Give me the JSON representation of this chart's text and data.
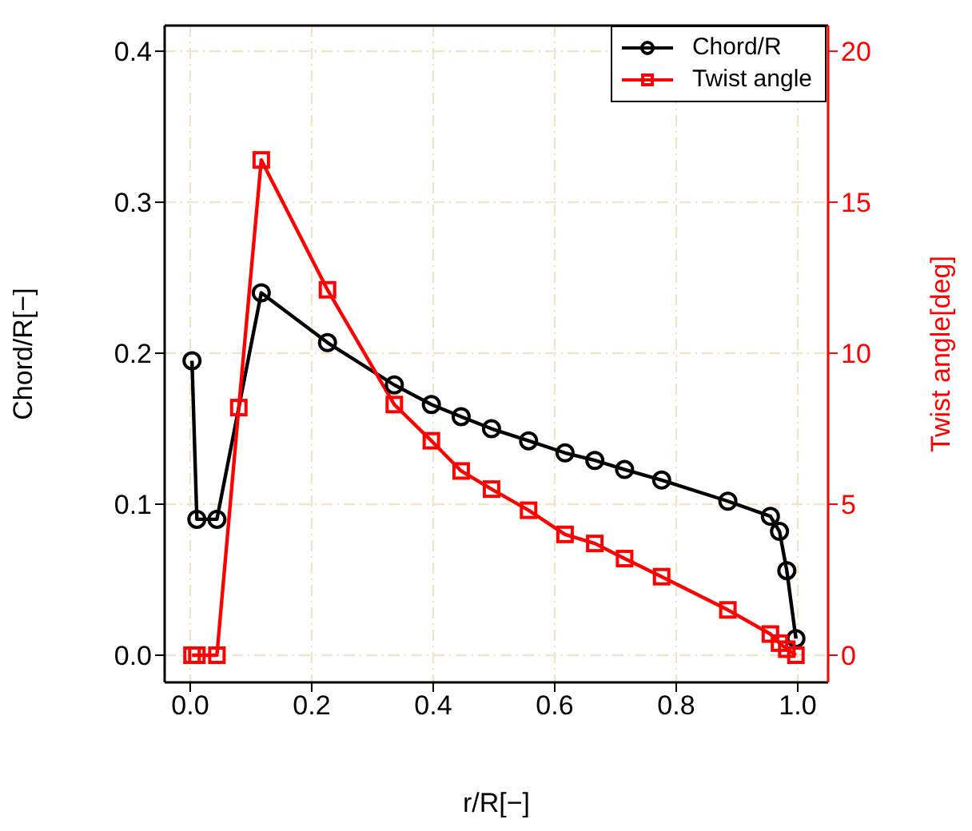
{
  "chart_data": {
    "type": "line",
    "xlabel": "r/R[−]",
    "ylabel": "Chord/R[−]",
    "y2label": "Twist angle[deg]",
    "xlim": [
      -0.042,
      1.05
    ],
    "xticks": [
      {
        "value": 0,
        "label": "0.0"
      },
      {
        "value": 0.2,
        "label": "0.2"
      },
      {
        "value": 0.4,
        "label": "0.4"
      },
      {
        "value": 0.6,
        "label": "0.6"
      },
      {
        "value": 0.8,
        "label": "0.8"
      },
      {
        "value": 1,
        "label": "1.0"
      }
    ],
    "ylim": [
      -0.018,
      0.417
    ],
    "yticks": [
      {
        "value": 0,
        "label": "0.0"
      },
      {
        "value": 0.1,
        "label": "0.1"
      },
      {
        "value": 0.2,
        "label": "0.2"
      },
      {
        "value": 0.3,
        "label": "0.3"
      },
      {
        "value": 0.4,
        "label": "0.4"
      }
    ],
    "y2lim": [
      -0.9,
      20.85
    ],
    "y2ticks": [
      0,
      5,
      10,
      15,
      20
    ],
    "grid": true,
    "legend": "top right",
    "line_style": "solid",
    "series": [
      {
        "name": "Chord/R",
        "color": "#000000",
        "marker": "circle",
        "x": [
          0.003,
          0.011,
          0.044,
          0.117,
          0.226,
          0.336,
          0.397,
          0.446,
          0.496,
          0.557,
          0.617,
          0.666,
          0.715,
          0.776,
          0.885,
          0.955,
          0.97,
          0.982,
          0.997
        ],
        "values": [
          0.195,
          0.09,
          0.09,
          0.24,
          0.207,
          0.179,
          0.166,
          0.158,
          0.15,
          0.142,
          0.134,
          0.129,
          0.123,
          0.116,
          0.102,
          0.092,
          0.082,
          0.056,
          0.011
        ]
      },
      {
        "name": "Twist angle",
        "color": "#ff0000",
        "marker": "square",
        "axis": "y2",
        "x": [
          0.003,
          0.011,
          0.044,
          0.08,
          0.117,
          0.226,
          0.336,
          0.397,
          0.446,
          0.496,
          0.557,
          0.617,
          0.666,
          0.715,
          0.776,
          0.885,
          0.955,
          0.97,
          0.982,
          0.997
        ],
        "values": [
          0,
          0,
          0,
          8.2,
          16.4,
          12.1,
          8.3,
          7.1,
          6.1,
          5.5,
          4.8,
          4,
          3.7,
          3.2,
          2.6,
          1.5,
          0.7,
          0.4,
          0.2,
          0
        ]
      }
    ]
  }
}
